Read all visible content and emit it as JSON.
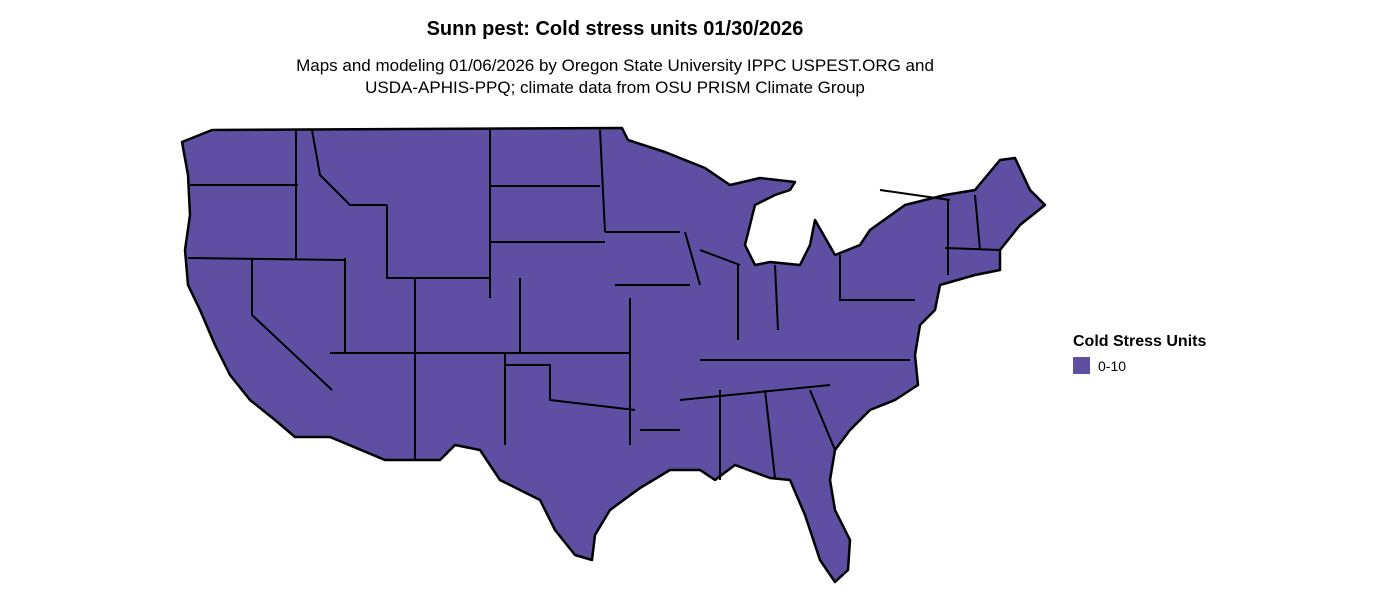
{
  "title": "Sunn pest: Cold stress units 01/30/2026",
  "subtitle_line1": "Maps and modeling 01/06/2026 by Oregon State University IPPC USPEST.ORG and",
  "subtitle_line2": "USDA-APHIS-PPQ; climate data from OSU PRISM Climate Group",
  "map": {
    "region": "Contiguous United States",
    "fill_color": "#5E4FA2",
    "border_color": "#000000"
  },
  "legend": {
    "title": "Cold Stress Units",
    "items": [
      {
        "label": "0-10",
        "color": "#5E4FA2"
      }
    ]
  }
}
